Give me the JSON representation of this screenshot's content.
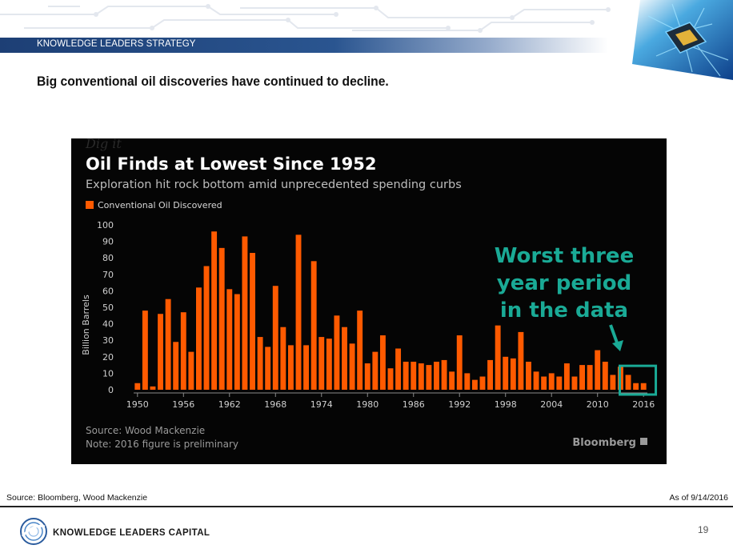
{
  "header": {
    "banner": "KNOWLEDGE LEADERS STRATEGY",
    "title": "Big conventional oil discoveries have continued to decline."
  },
  "chart_data": {
    "type": "bar",
    "title": "Oil Finds at Lowest Since 1952",
    "subtitle": "Exploration hit rock bottom amid unprecedented spending curbs",
    "legend": [
      {
        "label": "Conventional Oil Discovered",
        "color": "#ff5a00"
      }
    ],
    "legend_position": "top-left",
    "ylabel": "Billion Barrels",
    "ylim": [
      0,
      100
    ],
    "yticks": [
      0,
      10,
      20,
      30,
      40,
      50,
      60,
      70,
      80,
      90,
      100
    ],
    "x_tick_labels": [
      "1950",
      "1956",
      "1962",
      "1968",
      "1974",
      "1980",
      "1986",
      "1992",
      "1998",
      "2004",
      "2010",
      "2016"
    ],
    "x": [
      1950,
      1951,
      1952,
      1953,
      1954,
      1955,
      1956,
      1957,
      1958,
      1959,
      1960,
      1961,
      1962,
      1963,
      1964,
      1965,
      1966,
      1967,
      1968,
      1969,
      1970,
      1971,
      1972,
      1973,
      1974,
      1975,
      1976,
      1977,
      1978,
      1979,
      1980,
      1981,
      1982,
      1983,
      1984,
      1985,
      1986,
      1987,
      1988,
      1989,
      1990,
      1991,
      1992,
      1993,
      1994,
      1995,
      1996,
      1997,
      1998,
      1999,
      2000,
      2001,
      2002,
      2003,
      2004,
      2005,
      2006,
      2007,
      2008,
      2009,
      2010,
      2011,
      2012,
      2013,
      2014,
      2015,
      2016
    ],
    "values": [
      4,
      48,
      2,
      46,
      55,
      29,
      47,
      23,
      62,
      75,
      96,
      86,
      61,
      58,
      93,
      83,
      32,
      26,
      63,
      38,
      27,
      94,
      27,
      78,
      32,
      31,
      45,
      38,
      28,
      48,
      16,
      23,
      33,
      13,
      25,
      17,
      17,
      16,
      15,
      17,
      18,
      11,
      33,
      10,
      6,
      8,
      18,
      39,
      20,
      19,
      35,
      17,
      11,
      8,
      10,
      8,
      16,
      8,
      15,
      15,
      24,
      17,
      9,
      14,
      9,
      4,
      4
    ],
    "bar_color": "#ff5a00",
    "background": "#050505",
    "grid": false,
    "annotation": {
      "text": [
        "Worst three",
        "year period",
        "in the data"
      ],
      "color": "#1aaa96",
      "highlight_years": [
        2014,
        2016
      ]
    },
    "source": "Source: Wood Mackenzie",
    "note": "Note: 2016 figure is preliminary",
    "brand": "Bloomberg"
  },
  "footer": {
    "source": "Source: Bloomberg, Wood Mackenzie",
    "as_of": "As of 9/14/2016",
    "company": "KNOWLEDGE LEADERS CAPITAL",
    "page": "19"
  }
}
